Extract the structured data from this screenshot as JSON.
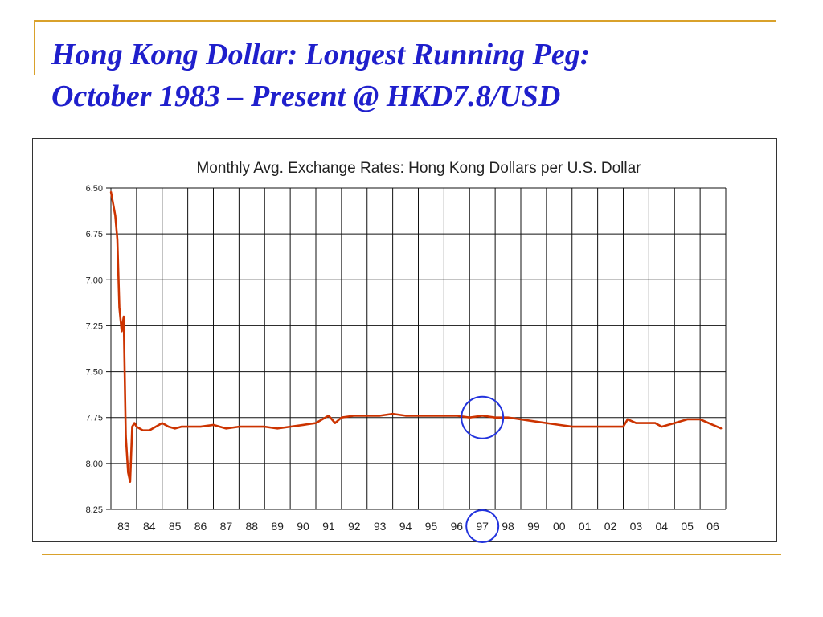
{
  "slide": {
    "title_line1": "Hong Kong Dollar: Longest Running Peg:",
    "title_line2": "October 1983 – Present @ HKD7.8/USD"
  },
  "colors": {
    "title": "#1f1fcc",
    "rule": "#d9a12b",
    "line": "#cc3300",
    "highlight": "#2233dd"
  },
  "chart_data": {
    "type": "line",
    "title": "Monthly Avg. Exchange Rates: Hong Kong Dollars per U.S. Dollar",
    "xlabel": "",
    "ylabel": "",
    "y_inverted": true,
    "ylim": [
      6.5,
      8.25
    ],
    "yticks": [
      "6.50",
      "6.75",
      "7.00",
      "7.25",
      "7.50",
      "7.75",
      "8.00",
      "8.25"
    ],
    "xlim": [
      1983.0,
      2007.0
    ],
    "xticks": [
      "83",
      "84",
      "85",
      "86",
      "87",
      "88",
      "89",
      "90",
      "91",
      "92",
      "93",
      "94",
      "95",
      "96",
      "97",
      "98",
      "99",
      "00",
      "01",
      "02",
      "03",
      "04",
      "05",
      "06"
    ],
    "grid": true,
    "highlight_circles": [
      {
        "x": 1997.5,
        "y": 7.75
      },
      {
        "x": 1997.5,
        "y": "x-axis label"
      }
    ],
    "series": [
      {
        "color": "#cc3300",
        "x": [
          1983.0,
          1983.08,
          1983.17,
          1983.25,
          1983.33,
          1983.42,
          1983.5,
          1983.58,
          1983.67,
          1983.75,
          1983.83,
          1983.92,
          1984.0,
          1984.25,
          1984.5,
          1984.75,
          1985.0,
          1985.25,
          1985.5,
          1985.75,
          1986.0,
          1986.5,
          1987.0,
          1987.5,
          1988.0,
          1988.5,
          1989.0,
          1989.5,
          1990.0,
          1990.5,
          1991.0,
          1991.5,
          1991.75,
          1992.0,
          1992.5,
          1993.0,
          1993.5,
          1994.0,
          1994.5,
          1995.0,
          1995.5,
          1996.0,
          1996.5,
          1997.0,
          1997.5,
          1998.0,
          1998.5,
          1999.0,
          1999.5,
          2000.0,
          2000.5,
          2001.0,
          2002.0,
          2003.0,
          2003.17,
          2003.5,
          2004.0,
          2004.25,
          2004.5,
          2005.0,
          2005.5,
          2006.0,
          2006.5,
          2006.83
        ],
        "y": [
          6.52,
          6.58,
          6.65,
          6.78,
          7.15,
          7.28,
          7.2,
          7.85,
          8.05,
          8.1,
          7.8,
          7.78,
          7.8,
          7.82,
          7.82,
          7.8,
          7.78,
          7.8,
          7.81,
          7.8,
          7.8,
          7.8,
          7.79,
          7.81,
          7.8,
          7.8,
          7.8,
          7.81,
          7.8,
          7.79,
          7.78,
          7.74,
          7.78,
          7.75,
          7.74,
          7.74,
          7.74,
          7.73,
          7.74,
          7.74,
          7.74,
          7.74,
          7.74,
          7.75,
          7.74,
          7.75,
          7.75,
          7.76,
          7.77,
          7.78,
          7.79,
          7.8,
          7.8,
          7.8,
          7.76,
          7.78,
          7.78,
          7.78,
          7.8,
          7.78,
          7.76,
          7.76,
          7.79,
          7.81
        ]
      }
    ]
  }
}
